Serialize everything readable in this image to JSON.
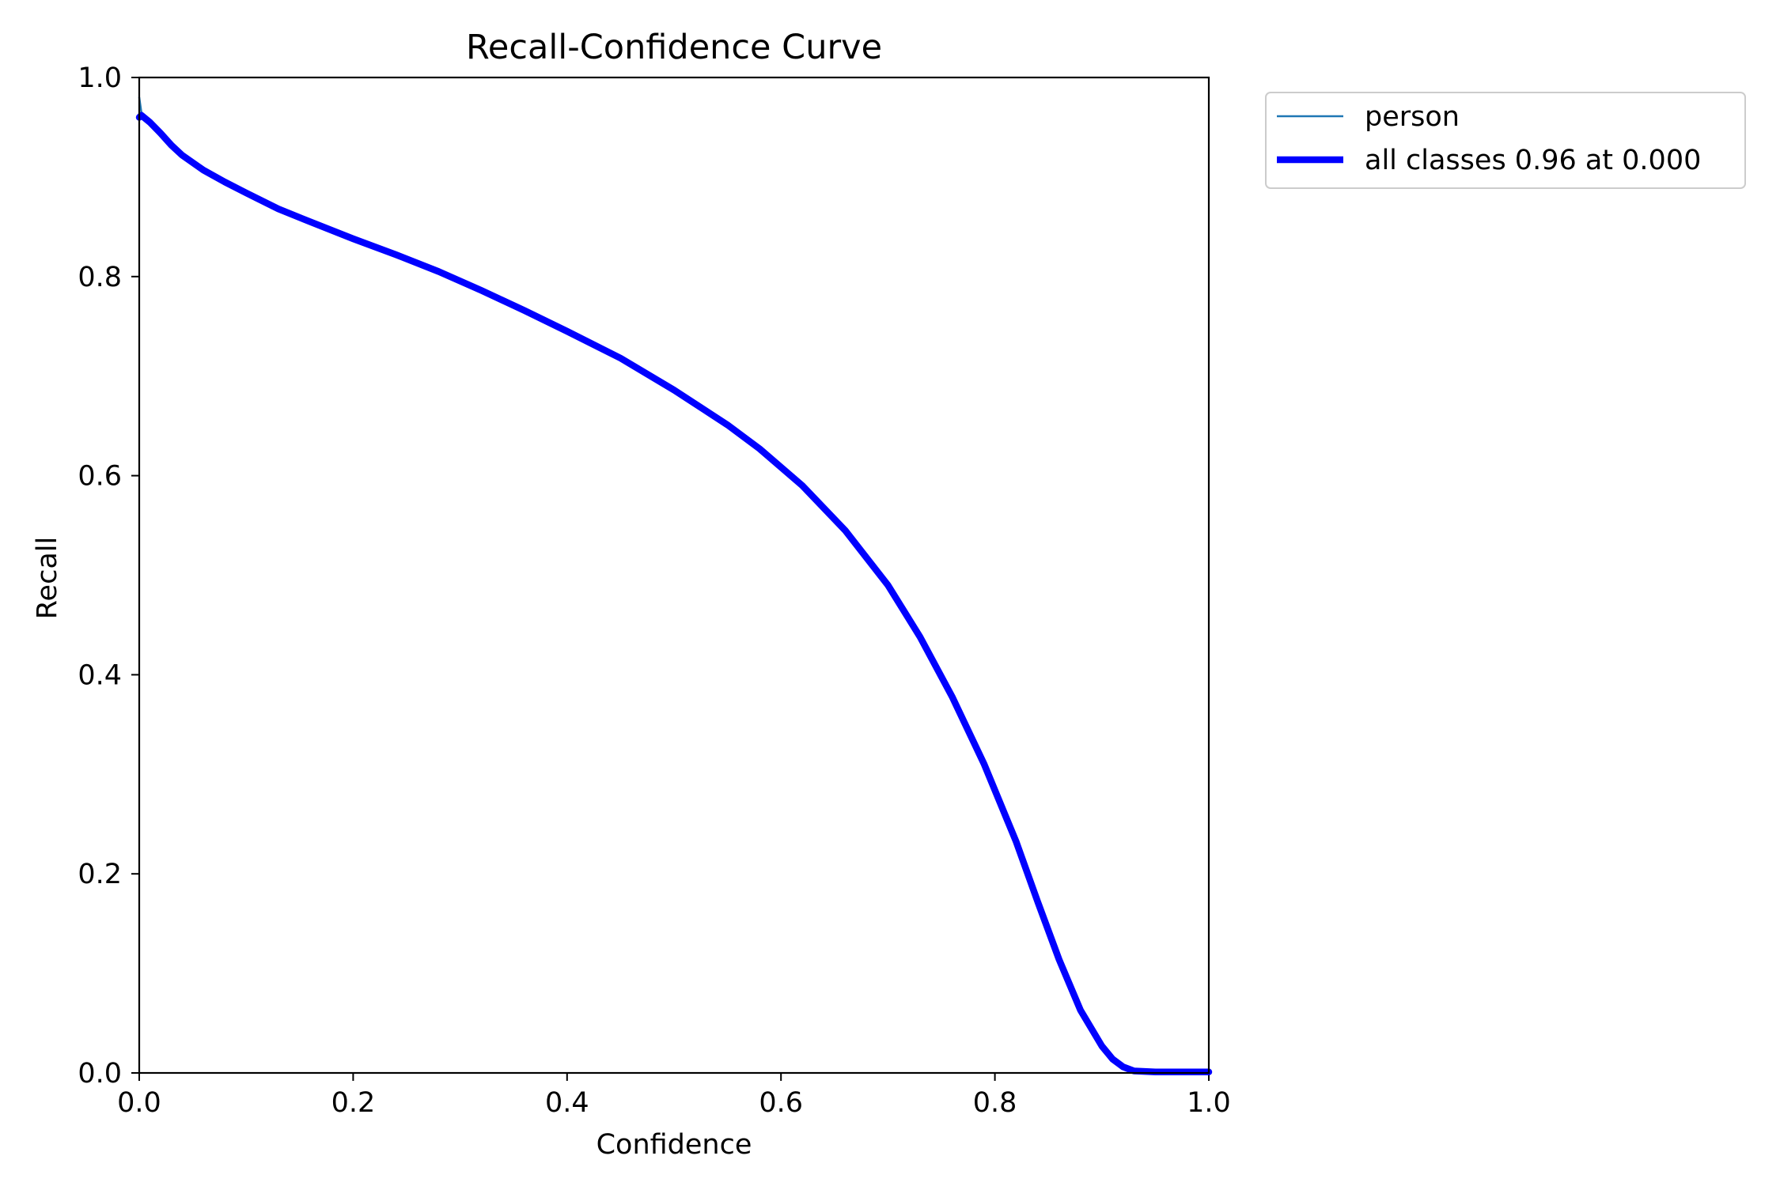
{
  "chart_data": {
    "type": "line",
    "title": "Recall-Confidence Curve",
    "xlabel": "Confidence",
    "ylabel": "Recall",
    "xlim": [
      0.0,
      1.0
    ],
    "ylim": [
      0.0,
      1.0
    ],
    "x_ticks": [
      "0.0",
      "0.2",
      "0.4",
      "0.6",
      "0.8",
      "1.0"
    ],
    "y_ticks": [
      "0.0",
      "0.2",
      "0.4",
      "0.6",
      "0.8",
      "1.0"
    ],
    "grid": false,
    "legend_position": "outside-top-right",
    "series": [
      {
        "name": "person",
        "color": "#1f77b4",
        "line_weight": "thin",
        "x": [
          0.0,
          0.002,
          0.01,
          0.02,
          0.03,
          0.04,
          0.06,
          0.08,
          0.1,
          0.13,
          0.16,
          0.2,
          0.24,
          0.28,
          0.32,
          0.36,
          0.4,
          0.45,
          0.5,
          0.55,
          0.58,
          0.62,
          0.66,
          0.7,
          0.73,
          0.76,
          0.79,
          0.82,
          0.84,
          0.86,
          0.88,
          0.9,
          0.91,
          0.92,
          0.93,
          0.95,
          0.97,
          1.0
        ],
        "y": [
          0.98,
          0.965,
          0.957,
          0.945,
          0.932,
          0.922,
          0.907,
          0.895,
          0.884,
          0.868,
          0.855,
          0.838,
          0.822,
          0.805,
          0.786,
          0.766,
          0.745,
          0.718,
          0.686,
          0.651,
          0.627,
          0.59,
          0.545,
          0.49,
          0.438,
          0.378,
          0.31,
          0.232,
          0.172,
          0.114,
          0.063,
          0.027,
          0.014,
          0.006,
          0.002,
          0.001,
          0.001,
          0.001
        ]
      },
      {
        "name": "all classes 0.96 at 0.000",
        "color": "#0000ff",
        "line_weight": "thick",
        "x": [
          0.0,
          0.002,
          0.01,
          0.02,
          0.03,
          0.04,
          0.06,
          0.08,
          0.1,
          0.13,
          0.16,
          0.2,
          0.24,
          0.28,
          0.32,
          0.36,
          0.4,
          0.45,
          0.5,
          0.55,
          0.58,
          0.62,
          0.66,
          0.7,
          0.73,
          0.76,
          0.79,
          0.82,
          0.84,
          0.86,
          0.88,
          0.9,
          0.91,
          0.92,
          0.93,
          0.95,
          0.97,
          1.0
        ],
        "y": [
          0.96,
          0.962,
          0.955,
          0.944,
          0.932,
          0.922,
          0.907,
          0.895,
          0.884,
          0.868,
          0.855,
          0.838,
          0.822,
          0.805,
          0.786,
          0.766,
          0.745,
          0.718,
          0.686,
          0.651,
          0.627,
          0.59,
          0.545,
          0.49,
          0.438,
          0.378,
          0.31,
          0.232,
          0.172,
          0.114,
          0.063,
          0.027,
          0.014,
          0.006,
          0.002,
          0.001,
          0.001,
          0.001
        ]
      }
    ]
  }
}
